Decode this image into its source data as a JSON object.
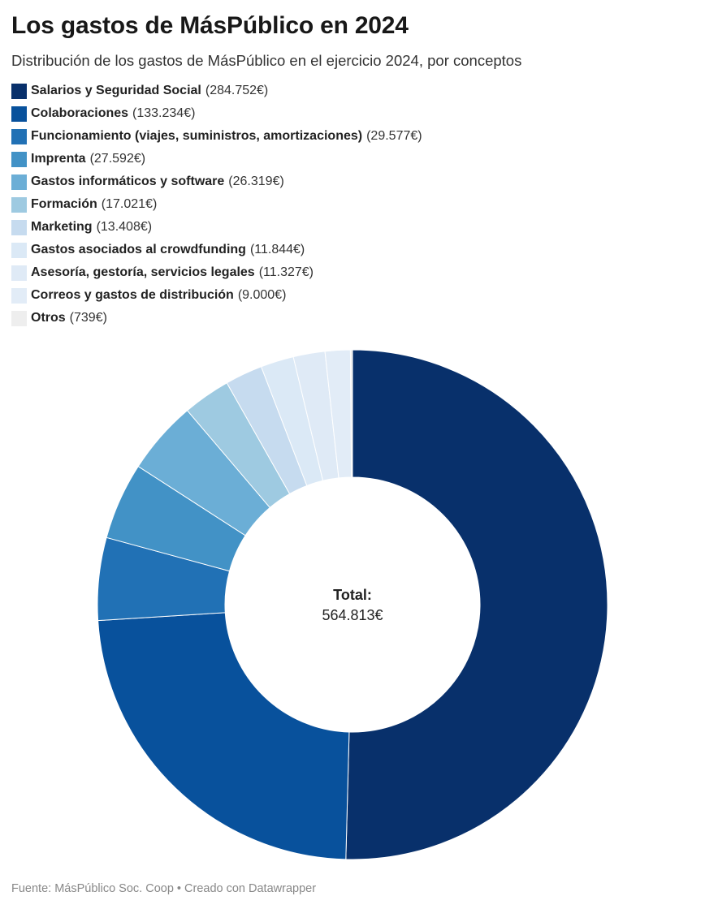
{
  "title": "Los gastos de MásPúblico en 2024",
  "subtitle": "Distribución de los gastos de MásPúblico en el ejercicio 2024, por conceptos",
  "center": {
    "label": "Total:",
    "value": "564.813€"
  },
  "footer": {
    "source": "Fuente: MásPúblico Soc. Coop",
    "separator": "•",
    "credit": "Creado con Datawrapper"
  },
  "chart_data": {
    "type": "pie",
    "variant": "donut",
    "title": "Los gastos de MásPúblico en 2024",
    "subtitle": "Distribución de los gastos de MásPúblico en el ejercicio 2024, por conceptos",
    "legend_position": "top-left",
    "total_label": "Total:",
    "total_text": "564.813€",
    "slices": [
      {
        "label": "Salarios y Seguridad Social",
        "value": 284752,
        "value_text": "(284.752€)",
        "color": "#08306b"
      },
      {
        "label": "Colaboraciones",
        "value": 133234,
        "value_text": "(133.234€)",
        "color": "#08519c"
      },
      {
        "label": "Funcionamiento (viajes, suministros, amortizaciones)",
        "value": 29577,
        "value_text": "(29.577€)",
        "color": "#2171b5"
      },
      {
        "label": "Imprenta",
        "value": 27592,
        "value_text": "(27.592€)",
        "color": "#4292c6"
      },
      {
        "label": "Gastos informáticos y software",
        "value": 26319,
        "value_text": "(26.319€)",
        "color": "#6baed6"
      },
      {
        "label": "Formación",
        "value": 17021,
        "value_text": "(17.021€)",
        "color": "#9ecae1"
      },
      {
        "label": "Marketing",
        "value": 13408,
        "value_text": "(13.408€)",
        "color": "#c6dbef"
      },
      {
        "label": "Gastos asociados al crowdfunding",
        "value": 11844,
        "value_text": "(11.844€)",
        "color": "#dbe9f6"
      },
      {
        "label": "Asesoría, gestoría, servicios legales",
        "value": 11327,
        "value_text": "(11.327€)",
        "color": "#dfeaf6"
      },
      {
        "label": "Correos y gastos de distribución",
        "value": 9000,
        "value_text": "(9.000€)",
        "color": "#e2ecf7"
      },
      {
        "label": "Otros",
        "value": 739,
        "value_text": "(739€)",
        "color": "#eeeeee"
      }
    ]
  }
}
